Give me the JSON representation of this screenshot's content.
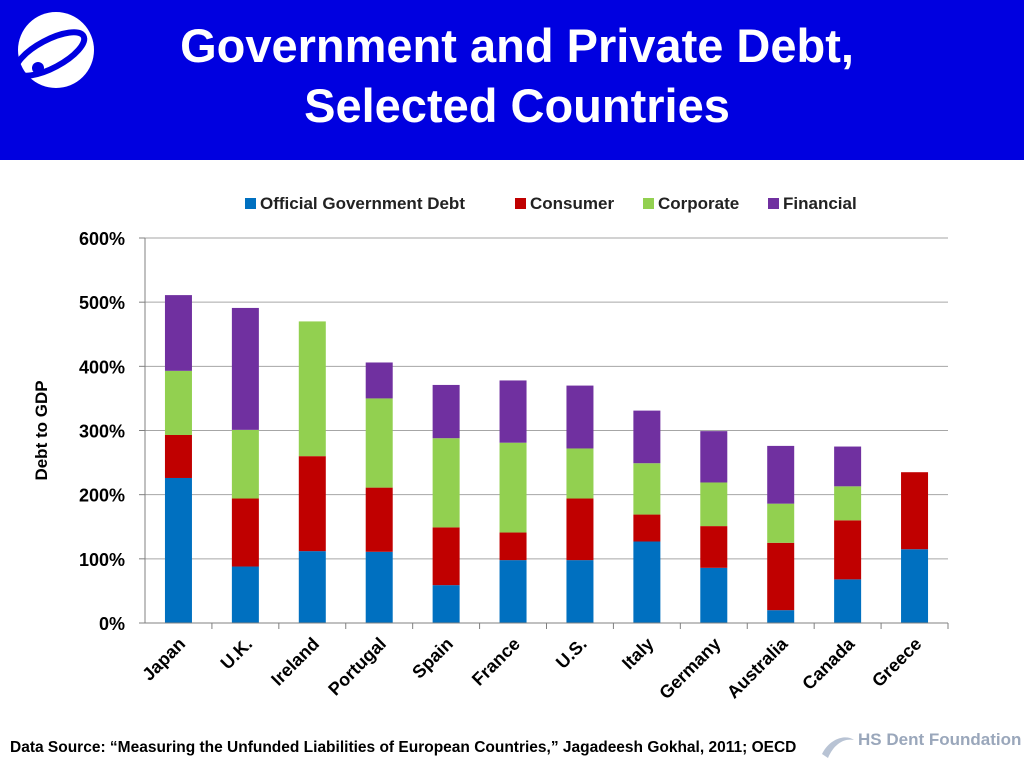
{
  "header": {
    "title_line1": "Government and Private Debt,",
    "title_line2": "Selected Countries",
    "background_color": "#0000e0",
    "logo_icon": "orbit-logo-icon"
  },
  "footer": {
    "source": "Data Source: “Measuring the Unfunded Liabilities of European Countries,” Jagadeesh Gokhal, 2011; OECD",
    "foundation_name": "HS Dent Foundation"
  },
  "chart_data": {
    "type": "bar",
    "stacked": true,
    "ylabel": "Debt to GDP",
    "xlabel": "",
    "ylim": [
      0,
      600
    ],
    "yticks": [
      "0%",
      "100%",
      "200%",
      "300%",
      "400%",
      "500%",
      "600%"
    ],
    "grid": true,
    "legend": "top",
    "categories": [
      "Japan",
      "U.K.",
      "Ireland",
      "Portugal",
      "Spain",
      "France",
      "U.S.",
      "Italy",
      "Germany",
      "Australia",
      "Canada",
      "Greece"
    ],
    "series": [
      {
        "name": "Official Government Debt",
        "color": "#0070c0",
        "values": [
          226,
          88,
          112,
          111,
          59,
          98,
          98,
          127,
          86,
          20,
          68,
          115
        ]
      },
      {
        "name": "Consumer",
        "color": "#c00000",
        "values": [
          67,
          106,
          148,
          100,
          90,
          43,
          96,
          42,
          65,
          105,
          92,
          120
        ]
      },
      {
        "name": "Corporate",
        "color": "#92d050",
        "values": [
          100,
          107,
          210,
          139,
          139,
          140,
          78,
          80,
          68,
          61,
          53,
          0
        ]
      },
      {
        "name": "Financial",
        "color": "#7030a0",
        "values": [
          118,
          190,
          0,
          56,
          83,
          97,
          98,
          82,
          80,
          90,
          62,
          0
        ]
      }
    ]
  }
}
